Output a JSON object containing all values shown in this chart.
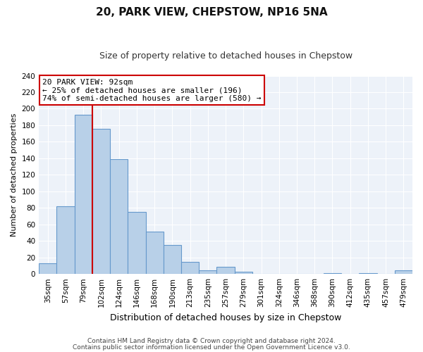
{
  "title": "20, PARK VIEW, CHEPSTOW, NP16 5NA",
  "subtitle": "Size of property relative to detached houses in Chepstow",
  "xlabel": "Distribution of detached houses by size in Chepstow",
  "ylabel": "Number of detached properties",
  "categories": [
    "35sqm",
    "57sqm",
    "79sqm",
    "102sqm",
    "124sqm",
    "146sqm",
    "168sqm",
    "190sqm",
    "213sqm",
    "235sqm",
    "257sqm",
    "279sqm",
    "301sqm",
    "324sqm",
    "346sqm",
    "368sqm",
    "390sqm",
    "412sqm",
    "435sqm",
    "457sqm",
    "479sqm"
  ],
  "values": [
    13,
    82,
    193,
    176,
    139,
    75,
    51,
    35,
    15,
    4,
    9,
    3,
    0,
    0,
    0,
    0,
    1,
    0,
    1,
    0,
    4
  ],
  "bar_color": "#b8d0e8",
  "bar_edge_color": "#6699cc",
  "vline_color": "#cc0000",
  "annotation_title": "20 PARK VIEW: 92sqm",
  "annotation_line1": "← 25% of detached houses are smaller (196)",
  "annotation_line2": "74% of semi-detached houses are larger (580) →",
  "annotation_box_facecolor": "#ffffff",
  "annotation_box_edgecolor": "#cc0000",
  "ylim": [
    0,
    240
  ],
  "yticks": [
    0,
    20,
    40,
    60,
    80,
    100,
    120,
    140,
    160,
    180,
    200,
    220,
    240
  ],
  "footer1": "Contains HM Land Registry data © Crown copyright and database right 2024.",
  "footer2": "Contains public sector information licensed under the Open Government Licence v3.0.",
  "fig_bg_color": "#ffffff",
  "plot_bg_color": "#edf2f9",
  "grid_color": "#ffffff",
  "title_fontsize": 11,
  "subtitle_fontsize": 9,
  "ylabel_fontsize": 8,
  "xlabel_fontsize": 9,
  "tick_fontsize": 7.5,
  "footer_fontsize": 6.5,
  "ann_fontsize": 8
}
